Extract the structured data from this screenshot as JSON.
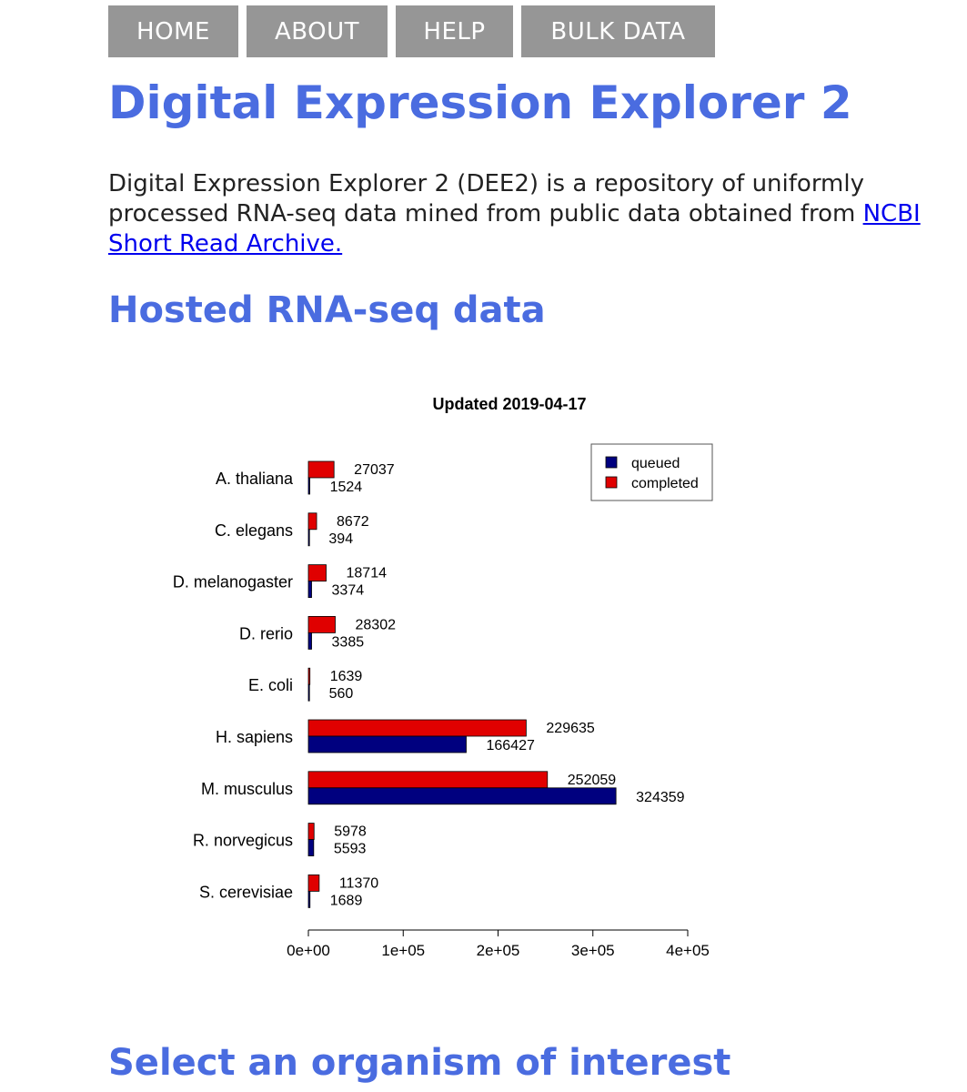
{
  "nav": {
    "items": [
      "HOME",
      "ABOUT",
      "HELP",
      "BULK DATA"
    ]
  },
  "header": {
    "title": "Digital Expression Explorer 2"
  },
  "intro": {
    "text": "Digital Expression Explorer 2 (DEE2) is a repository of uniformly processed RNA-seq data mined from public data obtained from",
    "link_text": "NCBI Short Read Archive."
  },
  "sections": {
    "hosted_title": "Hosted RNA-seq data",
    "select_title": "Select an organism of interest"
  },
  "colors": {
    "heading": "#4a6ce0",
    "nav_bg": "#969696",
    "queued": "#00007f",
    "completed": "#e00000"
  },
  "chart_data": {
    "type": "bar",
    "orientation": "horizontal",
    "title": "Updated 2019-04-17",
    "xlabel": "",
    "ylabel": "",
    "categories": [
      "A. thaliana",
      "C. elegans",
      "D. melanogaster",
      "D. rerio",
      "E. coli",
      "H. sapiens",
      "M. musculus",
      "R. norvegicus",
      "S. cerevisiae"
    ],
    "series": [
      {
        "name": "queued",
        "color": "#00007f",
        "values": [
          1524,
          394,
          3374,
          3385,
          560,
          166427,
          324359,
          5593,
          1689
        ]
      },
      {
        "name": "completed",
        "color": "#e00000",
        "values": [
          27037,
          8672,
          18714,
          28302,
          1639,
          229635,
          252059,
          5978,
          11370
        ]
      }
    ],
    "xlim": [
      0,
      400000
    ],
    "xticks": [
      0,
      100000,
      200000,
      300000,
      400000
    ],
    "xtick_labels": [
      "0e+00",
      "1e+05",
      "2e+05",
      "3e+05",
      "4e+05"
    ],
    "legend": {
      "position": "top-right",
      "entries": [
        "queued",
        "completed"
      ]
    },
    "grid": false
  }
}
